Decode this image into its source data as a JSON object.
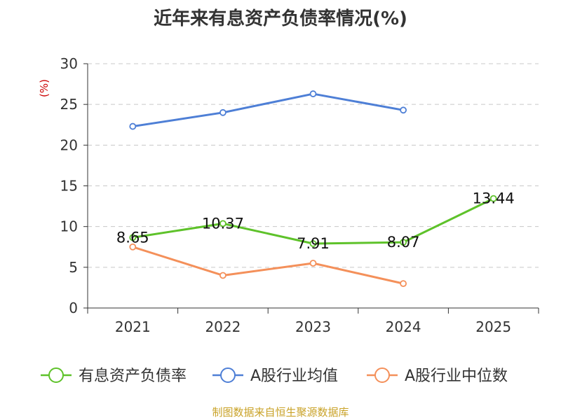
{
  "chart_data": {
    "type": "line",
    "title": "近年来有息资产负债率情况(%)",
    "ylabel": "(%)",
    "xlabel": "",
    "categories": [
      "2021",
      "2022",
      "2023",
      "2024",
      "2025"
    ],
    "ylim": [
      0,
      30
    ],
    "yticks": [
      0,
      5,
      10,
      15,
      20,
      25,
      30
    ],
    "grid": true,
    "legend_position": "bottom",
    "series": [
      {
        "name": "有息资产负债率",
        "color": "#5ec22a",
        "values": [
          8.65,
          10.37,
          7.91,
          8.07,
          13.44
        ],
        "labels": [
          "8.65",
          "10.37",
          "7.91",
          "8.07",
          "13.44"
        ]
      },
      {
        "name": "A股行业均值",
        "color": "#4e7fd6",
        "values": [
          22.3,
          24.0,
          26.3,
          24.3,
          null
        ]
      },
      {
        "name": "A股行业中位数",
        "color": "#f4905a",
        "values": [
          7.5,
          4.0,
          5.5,
          3.0,
          null
        ]
      }
    ]
  },
  "footer": {
    "source": "制图数据来自恒生聚源数据库"
  }
}
